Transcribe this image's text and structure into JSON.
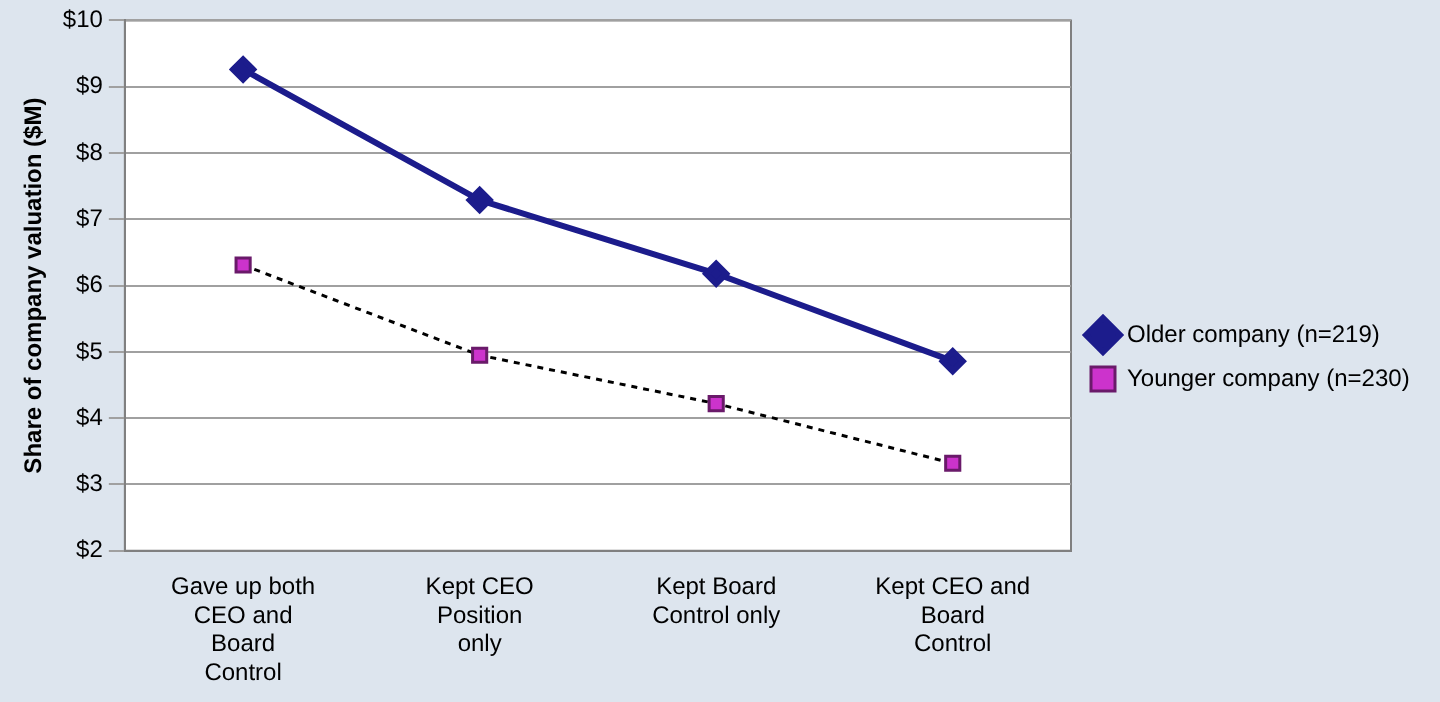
{
  "chart_data": {
    "type": "line",
    "ylabel": "Share of company valuation ($M)",
    "categories": [
      "Gave up both CEO and Board Control",
      "Kept CEO Position only",
      "Kept Board Control only",
      "Kept CEO and Board Control"
    ],
    "series": [
      {
        "name": "Older company (n=219)",
        "color": "#1c1c8c",
        "values": [
          9.26,
          7.29,
          6.18,
          4.86
        ],
        "marker": "diamond",
        "line_style": "solid"
      },
      {
        "name": "Younger company (n=230)",
        "color": "#cc33cc",
        "values": [
          6.31,
          4.95,
          4.22,
          3.32
        ],
        "marker": "square",
        "line_style": "dotted"
      }
    ],
    "ylim": [
      2,
      10
    ],
    "yticks": [
      {
        "value": 2,
        "label": "$2"
      },
      {
        "value": 3,
        "label": "$3"
      },
      {
        "value": 4,
        "label": "$4"
      },
      {
        "value": 5,
        "label": "$5"
      },
      {
        "value": 6,
        "label": "$6"
      },
      {
        "value": 7,
        "label": "$7"
      },
      {
        "value": 8,
        "label": "$8"
      },
      {
        "value": 9,
        "label": "$9"
      },
      {
        "value": 10,
        "label": "$10"
      }
    ],
    "grid": "y",
    "legend": "right"
  }
}
